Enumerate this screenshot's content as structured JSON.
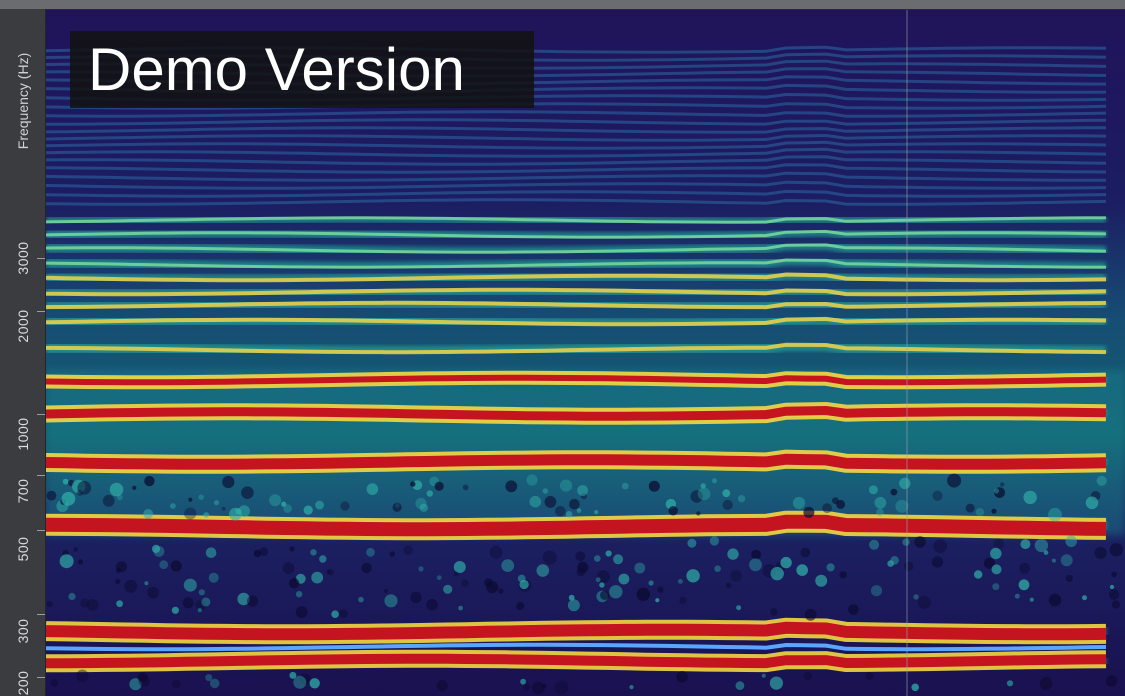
{
  "axis": {
    "title": "Frequency (Hz)",
    "ticks": [
      "3000",
      "2000",
      "1000",
      "700",
      "500",
      "300",
      "200"
    ]
  },
  "overlay": {
    "watermark": "Demo Version"
  },
  "colors": {
    "low": "#1b0f4f",
    "mid": "#2fb9a8",
    "high": "#f2d24a",
    "peak": "#c4141f"
  }
}
